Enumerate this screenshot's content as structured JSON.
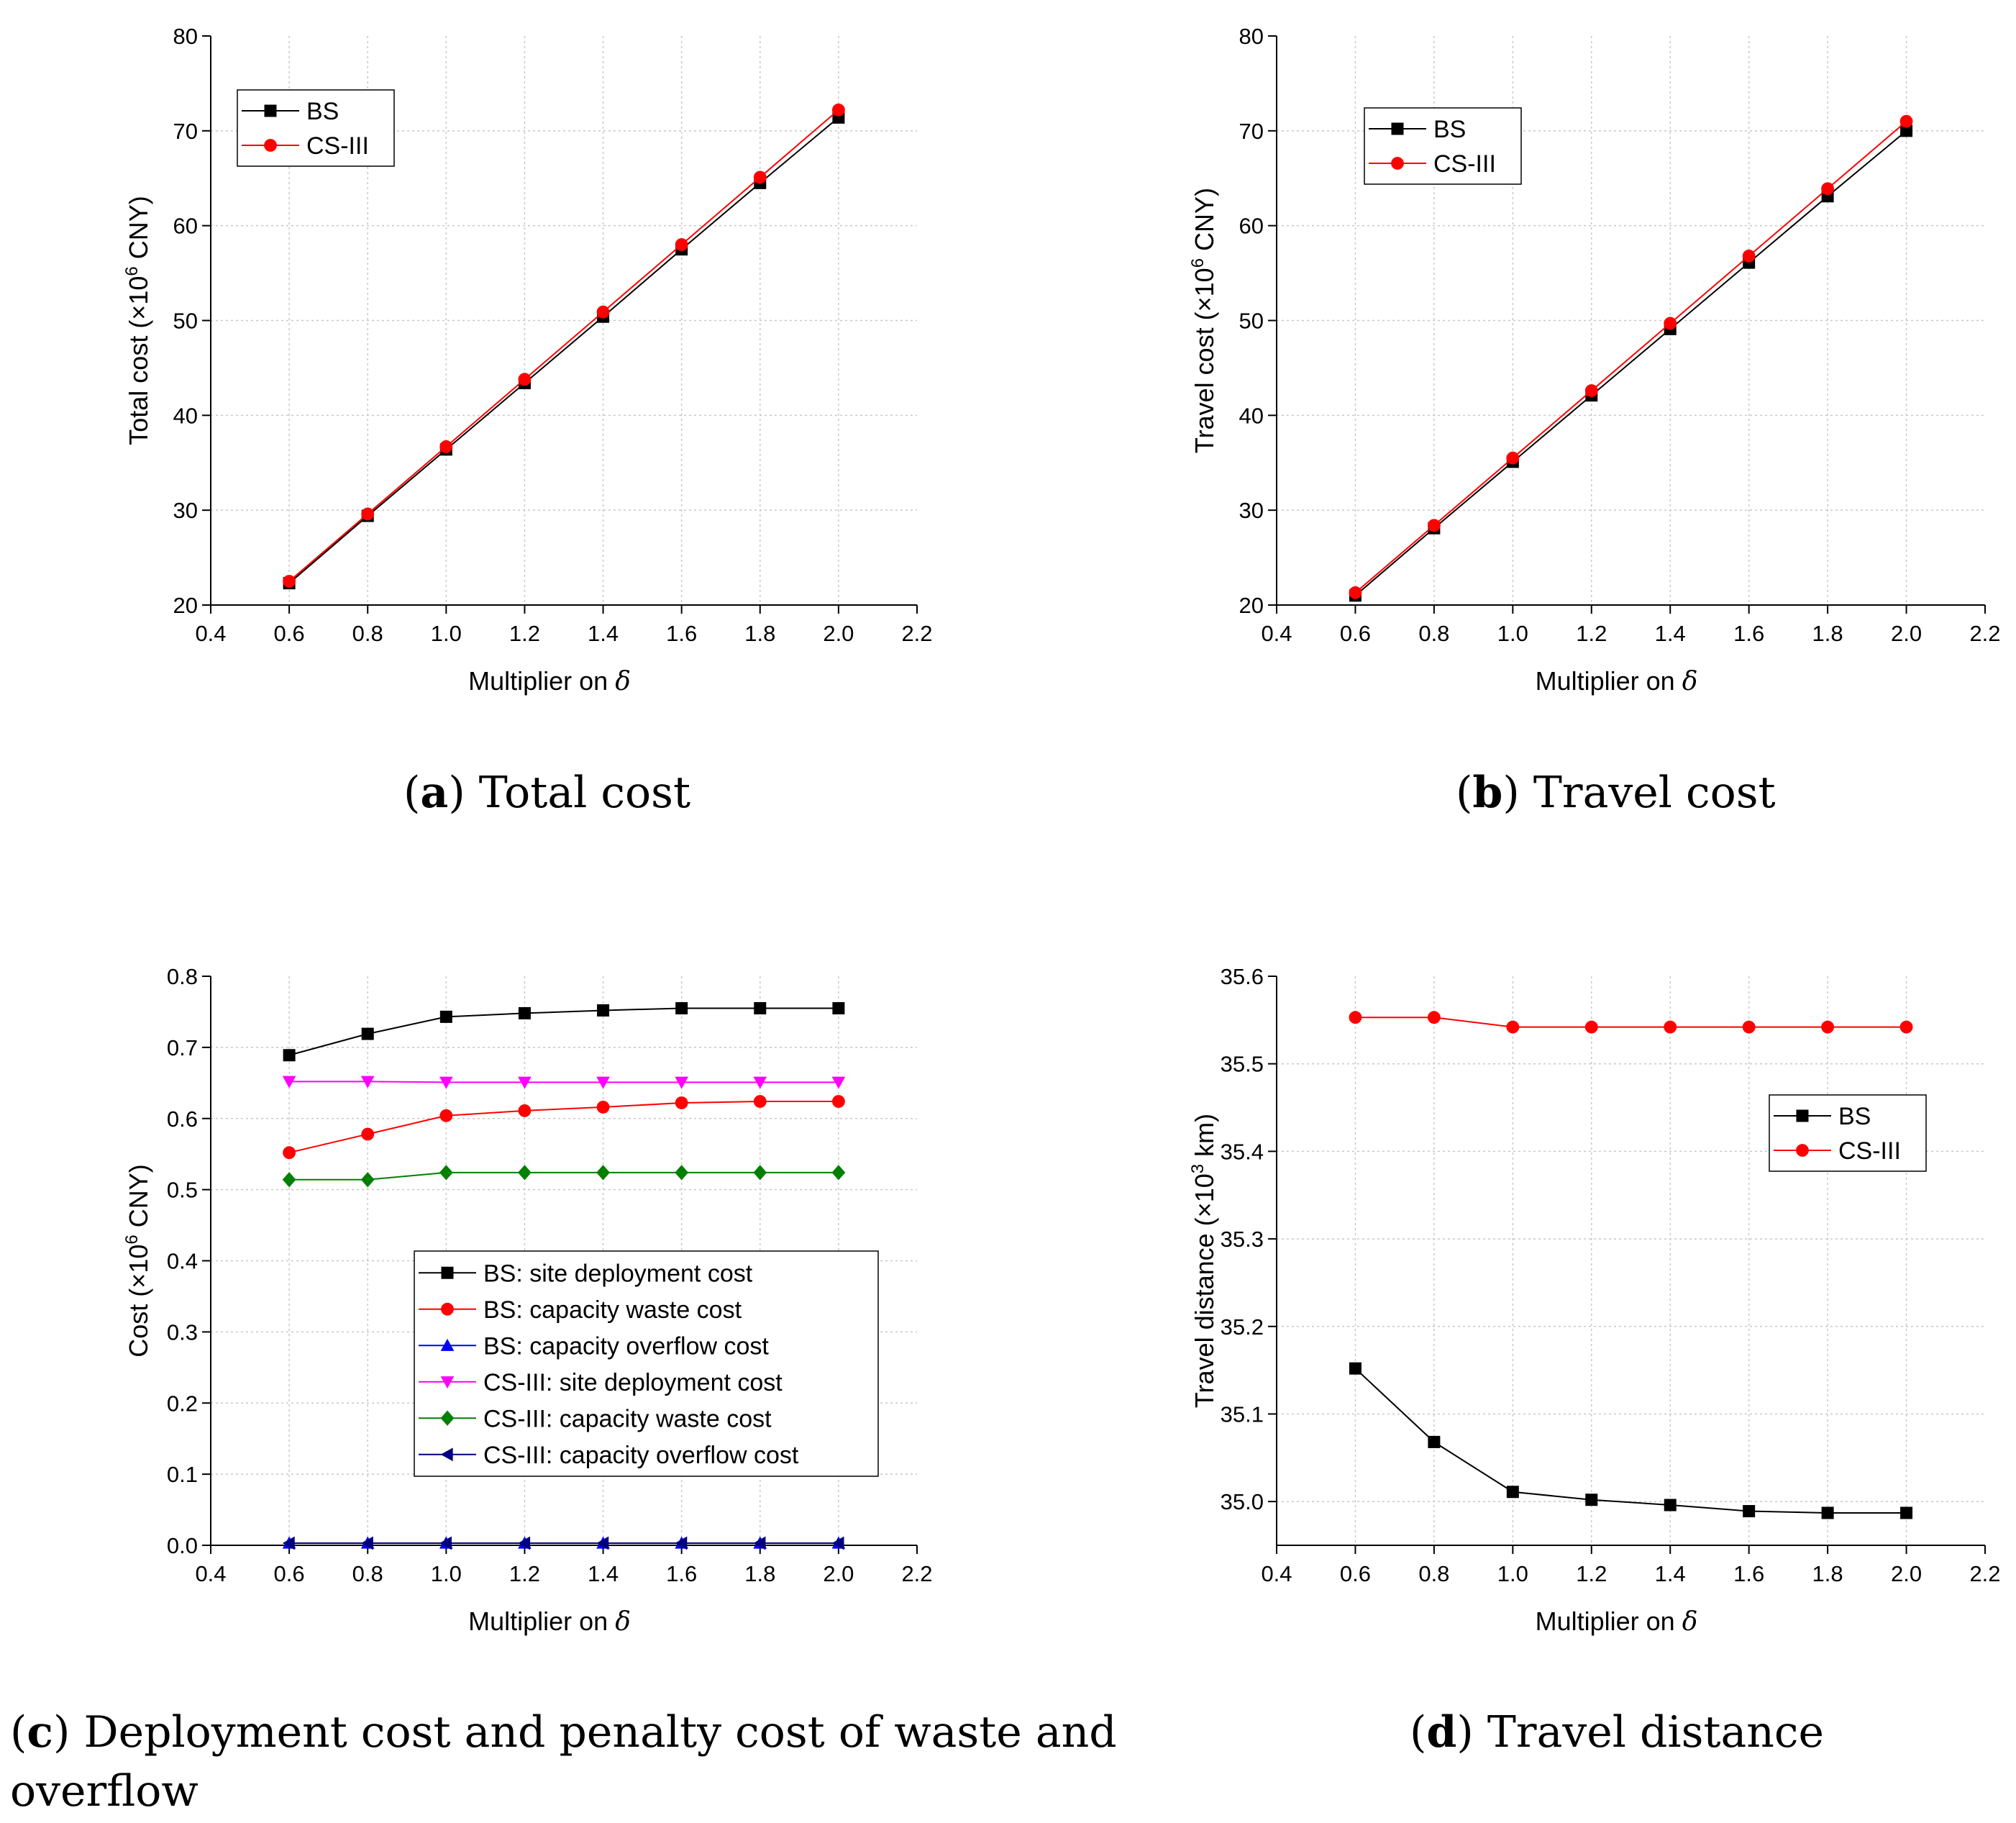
{
  "figure": {
    "captions": [
      {
        "letter": "a",
        "text": " Total cost"
      },
      {
        "letter": "b",
        "text": " Travel cost"
      },
      {
        "letter": "c",
        "text": " Deployment cost and penalty cost of waste and",
        "line2": "overflow"
      },
      {
        "letter": "d",
        "text": " Travel distance"
      }
    ]
  },
  "chart_data": [
    {
      "type": "line",
      "title": "(a) Total cost",
      "xlabel": "Multiplier on δ",
      "ylabel_prefix": "Total cost (×10",
      "ylabel_sup": "6",
      "ylabel_suffix": " CNY)",
      "xlim": [
        0.4,
        2.2
      ],
      "ylim": [
        20,
        80
      ],
      "xticks": [
        0.4,
        0.6,
        0.8,
        1.0,
        1.2,
        1.4,
        1.6,
        1.8,
        2.0,
        2.2
      ],
      "yticks": [
        20,
        30,
        40,
        50,
        60,
        70,
        80
      ],
      "grid": true,
      "legend_position": "top-left",
      "x": [
        0.6,
        0.8,
        1.0,
        1.2,
        1.4,
        1.6,
        1.8,
        2.0
      ],
      "series": [
        {
          "name": "BS",
          "color": "#000000",
          "marker": "square",
          "values": [
            22.3,
            29.4,
            36.4,
            43.4,
            50.4,
            57.5,
            64.5,
            71.4
          ]
        },
        {
          "name": "CS-III",
          "color": "#ff0000",
          "marker": "circle",
          "values": [
            22.5,
            29.6,
            36.7,
            43.8,
            50.9,
            58.0,
            65.1,
            72.2
          ]
        }
      ]
    },
    {
      "type": "line",
      "title": "(b) Travel cost",
      "xlabel": "Multiplier on δ",
      "ylabel_prefix": "Travel cost (×10",
      "ylabel_sup": "6",
      "ylabel_suffix": " CNY)",
      "xlim": [
        0.4,
        2.2
      ],
      "ylim": [
        20,
        80
      ],
      "xticks": [
        0.4,
        0.6,
        0.8,
        1.0,
        1.2,
        1.4,
        1.6,
        1.8,
        2.0,
        2.2
      ],
      "yticks": [
        20,
        30,
        40,
        50,
        60,
        70,
        80
      ],
      "grid": true,
      "legend_position": "top-left",
      "x": [
        0.6,
        0.8,
        1.0,
        1.2,
        1.4,
        1.6,
        1.8,
        2.0
      ],
      "series": [
        {
          "name": "BS",
          "color": "#000000",
          "marker": "square",
          "values": [
            21.0,
            28.1,
            35.1,
            42.1,
            49.1,
            56.1,
            63.1,
            70.0
          ]
        },
        {
          "name": "CS-III",
          "color": "#ff0000",
          "marker": "circle",
          "values": [
            21.3,
            28.4,
            35.5,
            42.6,
            49.7,
            56.8,
            63.9,
            71.0
          ]
        }
      ]
    },
    {
      "type": "line",
      "title": "(c) Deployment cost and penalty cost of waste and overflow",
      "xlabel": "Multiplier on δ",
      "ylabel_prefix": "Cost (×10",
      "ylabel_sup": "6",
      "ylabel_suffix": " CNY)",
      "xlim": [
        0.4,
        2.2
      ],
      "ylim": [
        0.0,
        0.8
      ],
      "ytick_decimals": 1,
      "xticks": [
        0.4,
        0.6,
        0.8,
        1.0,
        1.2,
        1.4,
        1.6,
        1.8,
        2.0,
        2.2
      ],
      "yticks": [
        0.0,
        0.1,
        0.2,
        0.3,
        0.4,
        0.5,
        0.6,
        0.7,
        0.8
      ],
      "grid": true,
      "legend_position": "center",
      "x": [
        0.6,
        0.8,
        1.0,
        1.2,
        1.4,
        1.6,
        1.8,
        2.0
      ],
      "series": [
        {
          "name": "BS: site deployment cost",
          "color": "#000000",
          "marker": "square",
          "values": [
            0.689,
            0.719,
            0.743,
            0.748,
            0.752,
            0.755,
            0.755,
            0.755
          ]
        },
        {
          "name": "BS: capacity waste cost",
          "color": "#ff0000",
          "marker": "circle",
          "values": [
            0.552,
            0.578,
            0.604,
            0.611,
            0.616,
            0.622,
            0.624,
            0.624
          ]
        },
        {
          "name": "BS: capacity overflow cost",
          "color": "#0000ff",
          "marker": "triangle-up",
          "values": [
            0.003,
            0.003,
            0.003,
            0.003,
            0.003,
            0.003,
            0.003,
            0.003
          ]
        },
        {
          "name": "CS-III:  site deployment cost",
          "color": "#ff00ff",
          "marker": "triangle-down",
          "values": [
            0.652,
            0.652,
            0.651,
            0.651,
            0.651,
            0.651,
            0.651,
            0.651
          ]
        },
        {
          "name": "CS-III: capacity waste cost",
          "color": "#008000",
          "marker": "diamond",
          "values": [
            0.514,
            0.514,
            0.524,
            0.524,
            0.524,
            0.524,
            0.524,
            0.524
          ]
        },
        {
          "name": "CS-III: capacity overflow cost",
          "color": "#000080",
          "marker": "triangle-left",
          "values": [
            0.003,
            0.003,
            0.003,
            0.003,
            0.003,
            0.003,
            0.003,
            0.003
          ]
        }
      ]
    },
    {
      "type": "line",
      "title": "(d) Travel distance",
      "xlabel": "Multiplier on δ",
      "ylabel_prefix": "Travel distance (×10",
      "ylabel_sup": "3",
      "ylabel_suffix": " km)",
      "xlim": [
        0.4,
        2.2
      ],
      "ylim": [
        34.95,
        35.6
      ],
      "ytick_decimals": 1,
      "xticks": [
        0.4,
        0.6,
        0.8,
        1.0,
        1.2,
        1.4,
        1.6,
        1.8,
        2.0,
        2.2
      ],
      "yticks": [
        35.0,
        35.1,
        35.2,
        35.3,
        35.4,
        35.5,
        35.6
      ],
      "grid": true,
      "legend_position": "right",
      "x": [
        0.6,
        0.8,
        1.0,
        1.2,
        1.4,
        1.6,
        1.8,
        2.0
      ],
      "series": [
        {
          "name": "BS",
          "color": "#000000",
          "marker": "square",
          "values": [
            35.152,
            35.068,
            35.011,
            35.002,
            34.996,
            34.989,
            34.987,
            34.987
          ]
        },
        {
          "name": "CS-III",
          "color": "#ff0000",
          "marker": "circle",
          "values": [
            35.553,
            35.553,
            35.542,
            35.542,
            35.542,
            35.542,
            35.542,
            35.542
          ]
        }
      ]
    }
  ]
}
